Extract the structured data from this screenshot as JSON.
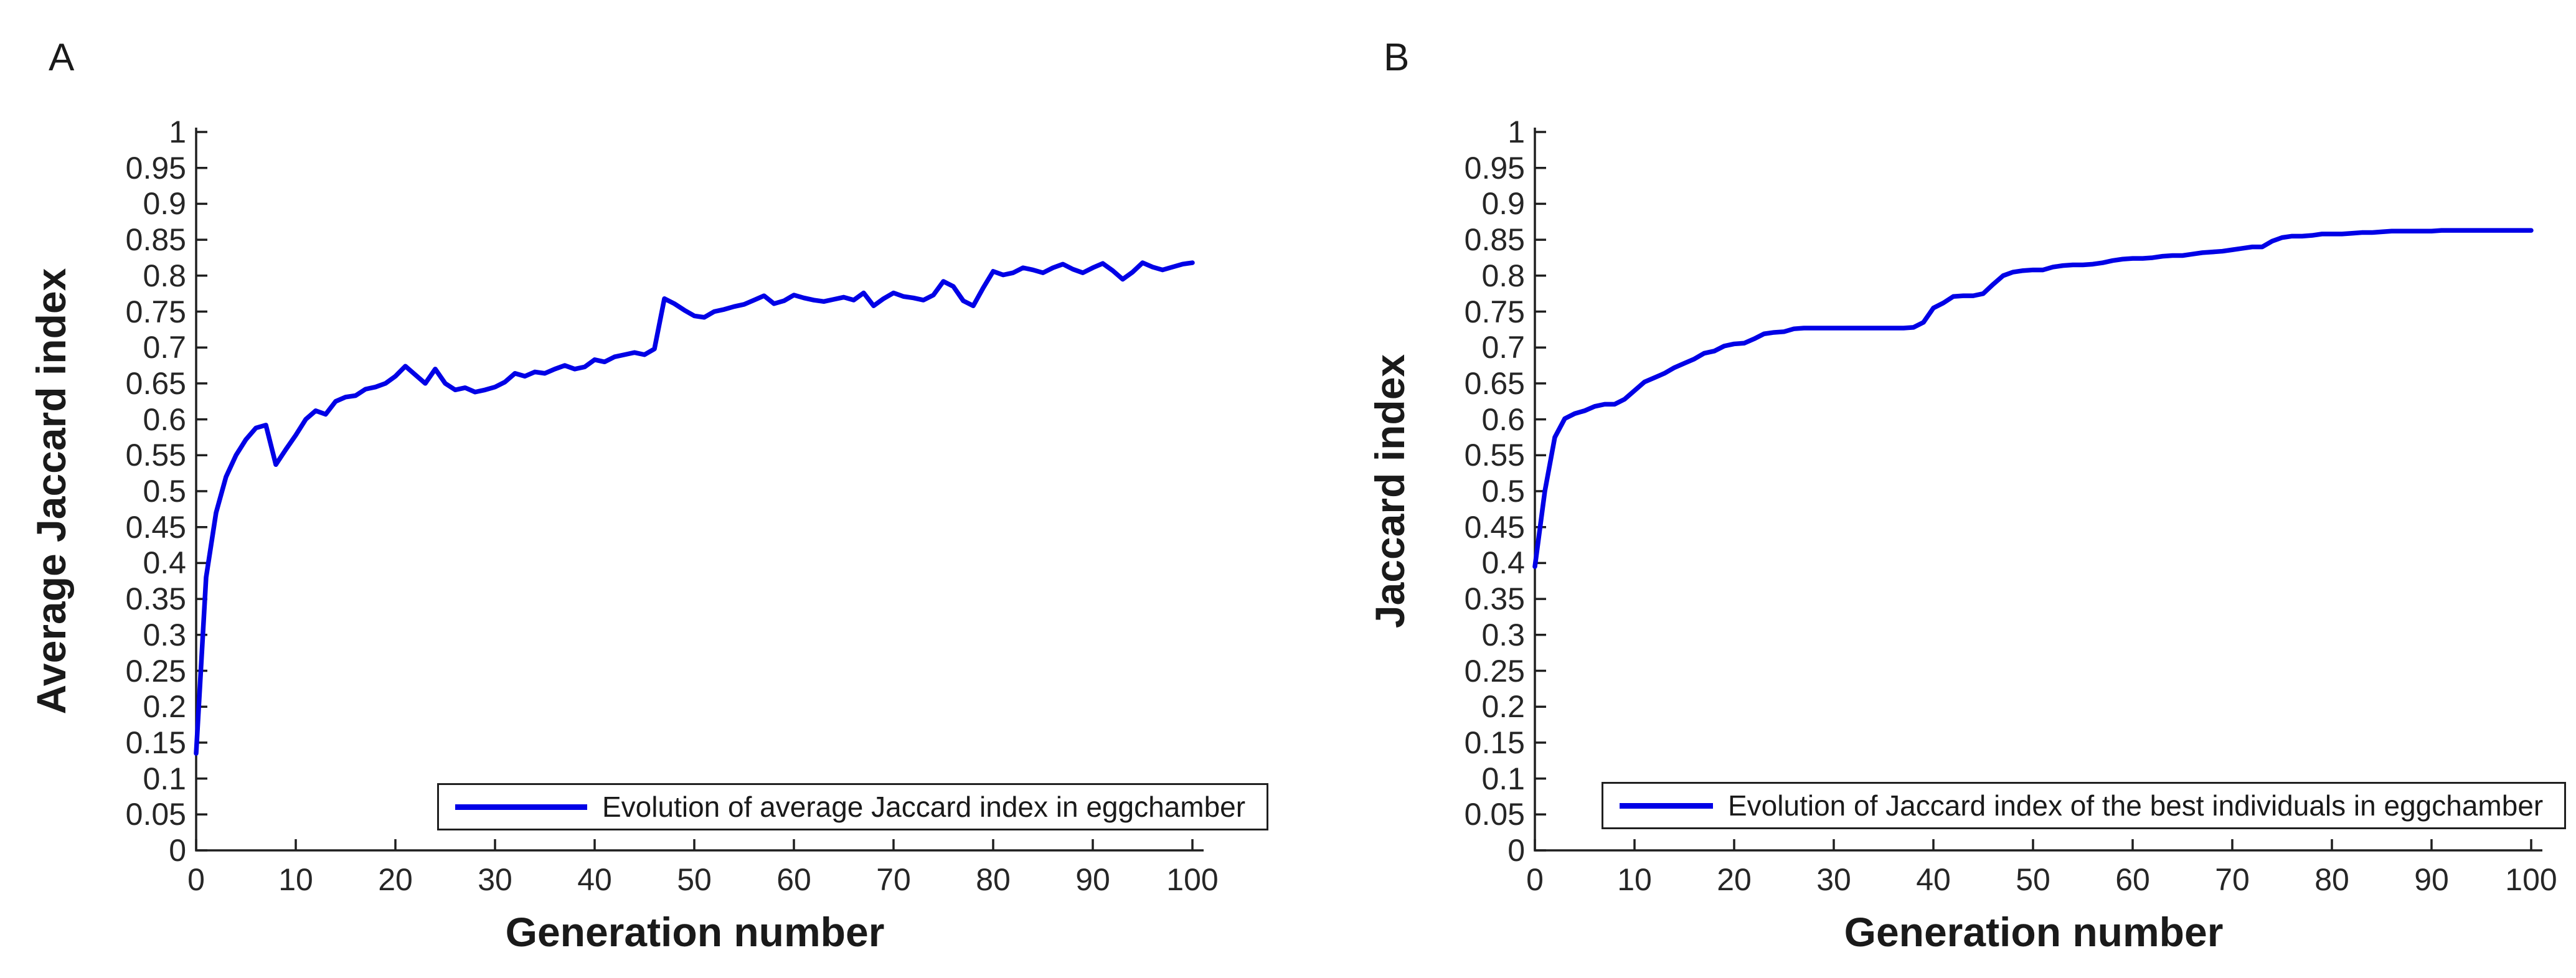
{
  "figure": {
    "background": "#ffffff",
    "text_color": "#1a1a1a",
    "axis_color": "#1f1f1f"
  },
  "chart_data": [
    {
      "type": "line",
      "panel_label": "A",
      "xlabel": "Generation number",
      "ylabel": "Average Jaccard index",
      "legend_label": "Evolution of average Jaccard index in eggchamber",
      "legend_position": "inside lower center",
      "line_color": "#0000e6",
      "grid": false,
      "xlim": [
        0,
        100
      ],
      "ylim": [
        0,
        1
      ],
      "xticks": [
        0,
        10,
        20,
        30,
        40,
        50,
        60,
        70,
        80,
        90,
        100
      ],
      "yticks": [
        "0",
        "0.05",
        "0.1",
        "0.15",
        "0.2",
        "0.25",
        "0.3",
        "0.35",
        "0.4",
        "0.45",
        "0.5",
        "0.55",
        "0.6",
        "0.65",
        "0.7",
        "0.75",
        "0.8",
        "0.85",
        "0.9",
        "0.95",
        "1"
      ],
      "x": {
        "start": 0,
        "end": 100,
        "step": 1
      },
      "y": [
        0.135,
        0.38,
        0.47,
        0.52,
        0.55,
        0.572,
        0.588,
        0.592,
        0.537,
        0.558,
        0.578,
        0.6,
        0.612,
        0.607,
        0.625,
        0.631,
        0.633,
        0.642,
        0.645,
        0.65,
        0.66,
        0.674,
        0.662,
        0.65,
        0.67,
        0.65,
        0.641,
        0.644,
        0.638,
        0.641,
        0.645,
        0.652,
        0.664,
        0.66,
        0.666,
        0.664,
        0.67,
        0.675,
        0.67,
        0.673,
        0.683,
        0.68,
        0.687,
        0.69,
        0.693,
        0.69,
        0.698,
        0.768,
        0.761,
        0.752,
        0.744,
        0.742,
        0.75,
        0.753,
        0.757,
        0.76,
        0.766,
        0.772,
        0.761,
        0.765,
        0.773,
        0.769,
        0.766,
        0.764,
        0.767,
        0.77,
        0.766,
        0.776,
        0.758,
        0.768,
        0.776,
        0.771,
        0.769,
        0.766,
        0.773,
        0.792,
        0.785,
        0.765,
        0.758,
        0.783,
        0.806,
        0.801,
        0.804,
        0.811,
        0.808,
        0.804,
        0.811,
        0.816,
        0.809,
        0.804,
        0.811,
        0.817,
        0.807,
        0.795,
        0.805,
        0.818,
        0.812,
        0.808,
        0.812,
        0.816,
        0.818
      ]
    },
    {
      "type": "line",
      "panel_label": "B",
      "xlabel": "Generation number",
      "ylabel": "Jaccard index",
      "legend_label": "Evolution of Jaccard index of the best individuals in eggchamber",
      "legend_position": "inside lower center",
      "line_color": "#0000e6",
      "grid": false,
      "xlim": [
        0,
        100
      ],
      "ylim": [
        0,
        1
      ],
      "xticks": [
        0,
        10,
        20,
        30,
        40,
        50,
        60,
        70,
        80,
        90,
        100
      ],
      "yticks": [
        "0",
        "0.05",
        "0.1",
        "0.15",
        "0.2",
        "0.25",
        "0.3",
        "0.35",
        "0.4",
        "0.45",
        "0.5",
        "0.55",
        "0.6",
        "0.65",
        "0.7",
        "0.75",
        "0.8",
        "0.85",
        "0.9",
        "0.95",
        "1"
      ],
      "x": {
        "start": 0,
        "end": 100,
        "step": 1
      },
      "y": [
        0.395,
        0.5,
        0.575,
        0.601,
        0.608,
        0.612,
        0.618,
        0.621,
        0.621,
        0.628,
        0.64,
        0.652,
        0.658,
        0.664,
        0.672,
        0.678,
        0.684,
        0.692,
        0.695,
        0.702,
        0.705,
        0.706,
        0.712,
        0.719,
        0.721,
        0.722,
        0.726,
        0.727,
        0.727,
        0.727,
        0.727,
        0.727,
        0.727,
        0.727,
        0.727,
        0.727,
        0.727,
        0.727,
        0.728,
        0.735,
        0.755,
        0.762,
        0.771,
        0.772,
        0.772,
        0.775,
        0.788,
        0.8,
        0.805,
        0.807,
        0.808,
        0.808,
        0.812,
        0.814,
        0.815,
        0.815,
        0.816,
        0.818,
        0.821,
        0.823,
        0.824,
        0.824,
        0.825,
        0.827,
        0.828,
        0.828,
        0.83,
        0.832,
        0.833,
        0.834,
        0.836,
        0.838,
        0.84,
        0.84,
        0.848,
        0.853,
        0.855,
        0.855,
        0.856,
        0.858,
        0.858,
        0.858,
        0.859,
        0.86,
        0.86,
        0.861,
        0.862,
        0.862,
        0.862,
        0.862,
        0.862,
        0.863,
        0.863,
        0.863,
        0.863,
        0.863,
        0.863,
        0.863,
        0.863,
        0.863,
        0.863
      ]
    }
  ]
}
